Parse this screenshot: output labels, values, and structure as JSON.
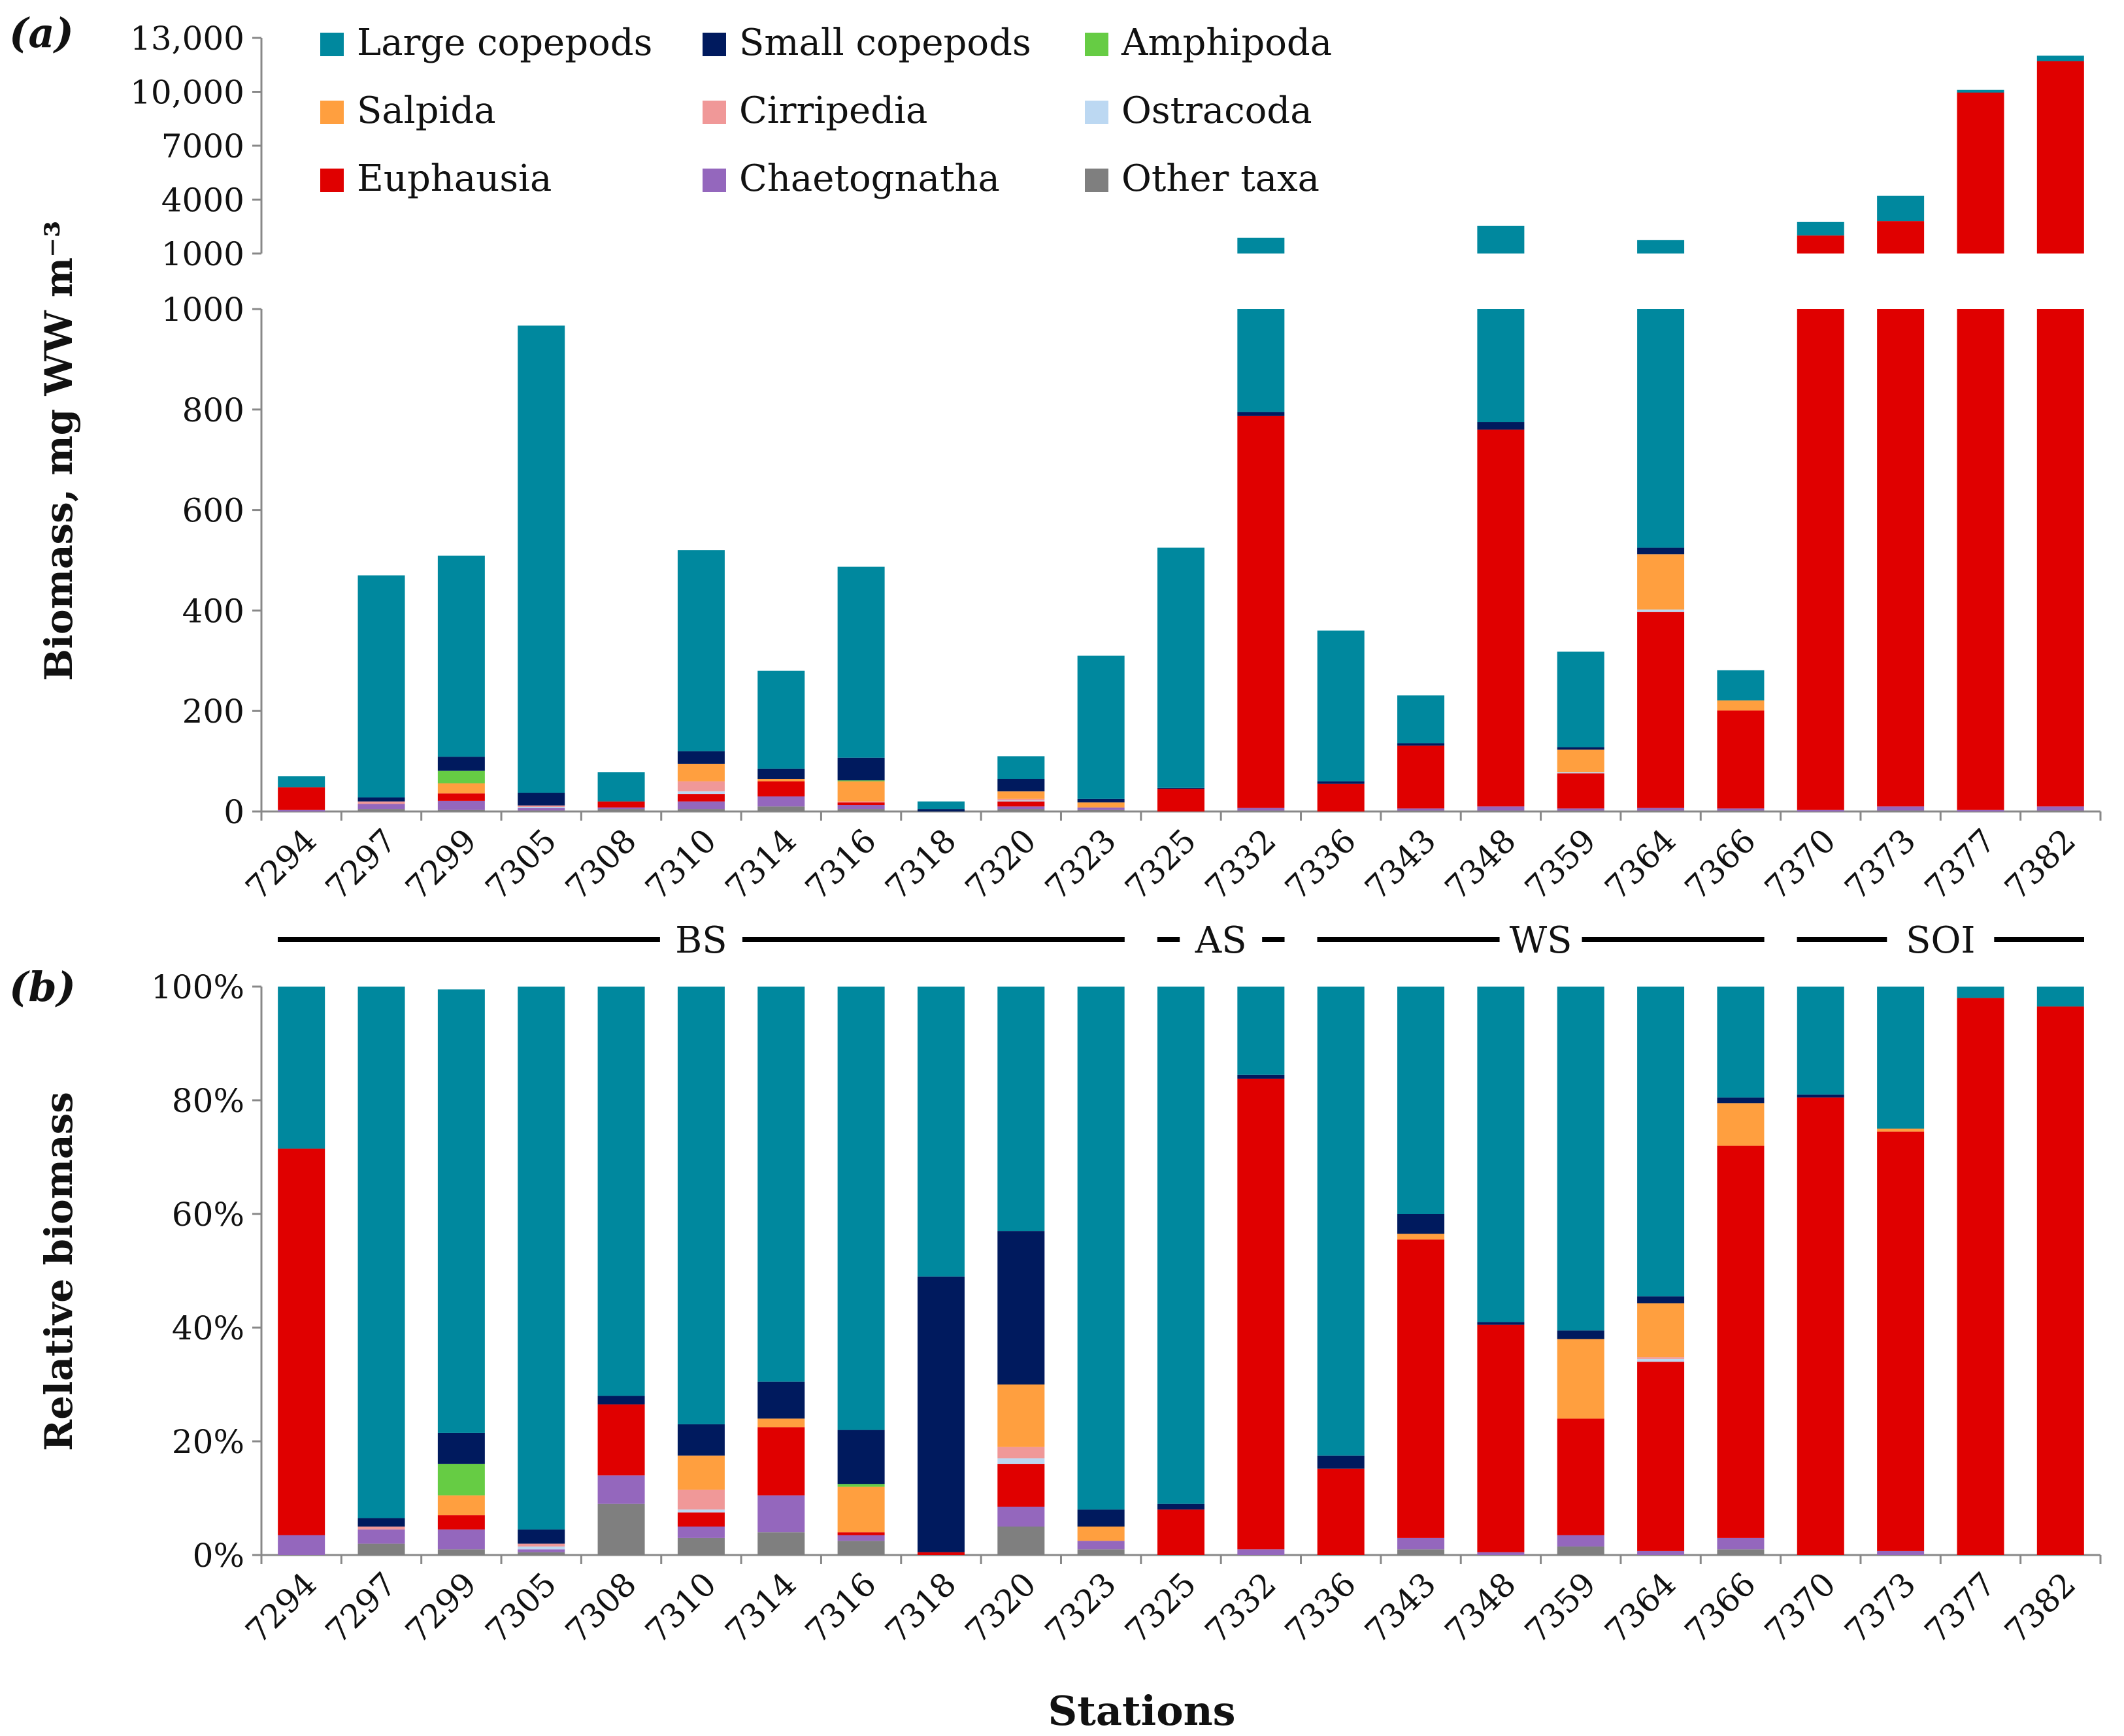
{
  "colors": {
    "large_copepods": "#00889e",
    "small_copepods": "#001a5e",
    "amphipoda": "#66cc44",
    "salpida": "#ff9f3f",
    "cirripedia": "#f09898",
    "ostracoda": "#bcd8f2",
    "euphausia": "#e00000",
    "chaetognatha": "#9467bd",
    "other_taxa": "#7f7f7f",
    "axis": "#888888",
    "text": "#111111"
  },
  "panel_labels": {
    "a": "(a)",
    "b": "(b)"
  },
  "legend": [
    {
      "key": "large_copepods",
      "label": "Large copepods"
    },
    {
      "key": "small_copepods",
      "label": "Small copepods"
    },
    {
      "key": "amphipoda",
      "label": "Amphipoda"
    },
    {
      "key": "salpida",
      "label": "Salpida"
    },
    {
      "key": "cirripedia",
      "label": "Cirripedia"
    },
    {
      "key": "ostracoda",
      "label": "Ostracoda"
    },
    {
      "key": "euphausia",
      "label": "Euphausia"
    },
    {
      "key": "chaetognatha",
      "label": "Chaetognatha"
    },
    {
      "key": "other_taxa",
      "label": "Other taxa"
    }
  ],
  "regions": [
    {
      "label": "BS",
      "from": 0,
      "to": 10
    },
    {
      "label": "AS",
      "from": 11,
      "to": 12
    },
    {
      "label": "WS",
      "from": 13,
      "to": 18
    },
    {
      "label": "SOI",
      "from": 19,
      "to": 22
    }
  ],
  "chart_data": [
    {
      "id": "panel-a",
      "type": "bar",
      "stacked": true,
      "title": "",
      "xlabel": "",
      "ylabel": "Biomass, mg WW m⁻³",
      "broken_axis": true,
      "lower_ylim": [
        0,
        1000
      ],
      "lower_ticks": [
        "0",
        "200",
        "400",
        "600",
        "800",
        "1000"
      ],
      "upper_ylim": [
        1000,
        13000
      ],
      "upper_ticks": [
        "1000",
        "4000",
        "7000",
        "10,000",
        "13,000"
      ],
      "grid": false,
      "categories": [
        "7294",
        "7297",
        "7299",
        "7305",
        "7308",
        "7310",
        "7314",
        "7316",
        "7318",
        "7320",
        "7323",
        "7325",
        "7332",
        "7336",
        "7343",
        "7348",
        "7359",
        "7364",
        "7366",
        "7370",
        "7373",
        "7377",
        "7382"
      ],
      "series": [
        {
          "key": "other_taxa",
          "name": "Other taxa",
          "values": [
            0,
            5,
            3,
            2,
            5,
            5,
            10,
            5,
            0,
            5,
            3,
            0,
            2,
            0,
            2,
            2,
            2,
            2,
            2,
            0,
            2,
            0,
            2
          ]
        },
        {
          "key": "chaetognatha",
          "name": "Chaetognatha",
          "values": [
            3,
            10,
            18,
            5,
            3,
            15,
            20,
            8,
            0,
            5,
            5,
            0,
            5,
            0,
            4,
            8,
            4,
            5,
            4,
            3,
            8,
            3,
            8
          ]
        },
        {
          "key": "euphausia",
          "name": "Euphausia",
          "values": [
            45,
            0,
            15,
            0,
            12,
            15,
            30,
            5,
            0,
            10,
            0,
            45,
            780,
            55,
            125,
            750,
            70,
            390,
            195,
            2000,
            2800,
            10000,
            11700
          ]
        },
        {
          "key": "ostracoda",
          "name": "Ostracoda",
          "values": [
            0,
            0,
            0,
            2,
            0,
            5,
            0,
            0,
            0,
            2,
            0,
            0,
            0,
            0,
            0,
            0,
            2,
            5,
            0,
            0,
            0,
            0,
            0
          ]
        },
        {
          "key": "cirripedia",
          "name": "Cirripedia",
          "values": [
            0,
            5,
            0,
            3,
            0,
            20,
            0,
            2,
            0,
            3,
            0,
            0,
            0,
            0,
            0,
            0,
            0,
            0,
            0,
            0,
            0,
            0,
            0
          ]
        },
        {
          "key": "salpida",
          "name": "Salpida",
          "values": [
            0,
            0,
            20,
            0,
            0,
            35,
            5,
            40,
            0,
            15,
            10,
            0,
            0,
            0,
            0,
            0,
            45,
            110,
            20,
            0,
            0,
            0,
            0
          ]
        },
        {
          "key": "amphipoda",
          "name": "Amphipoda",
          "values": [
            0,
            0,
            25,
            0,
            0,
            0,
            0,
            2,
            0,
            0,
            0,
            0,
            0,
            0,
            0,
            0,
            0,
            0,
            0,
            0,
            0,
            0,
            0
          ]
        },
        {
          "key": "small_copepods",
          "name": "Small copepods",
          "values": [
            0,
            8,
            28,
            25,
            0,
            25,
            20,
            45,
            5,
            25,
            7,
            2,
            8,
            5,
            5,
            15,
            5,
            13,
            0,
            0,
            0,
            0,
            0
          ]
        },
        {
          "key": "large_copepods",
          "name": "Large copepods",
          "values": [
            22,
            442,
            400,
            930,
            58,
            400,
            195,
            380,
            15,
            45,
            285,
            478,
            1085,
            300,
            95,
            1760,
            190,
            1230,
            60,
            750,
            1400,
            100,
            300
          ]
        }
      ]
    },
    {
      "id": "panel-b",
      "type": "bar",
      "stacked": true,
      "title": "",
      "xlabel": "Stations",
      "ylabel": "Relative biomass",
      "ylim": [
        0,
        100
      ],
      "ticks": [
        "0%",
        "20%",
        "40%",
        "60%",
        "80%",
        "100%"
      ],
      "grid": false,
      "categories": [
        "7294",
        "7297",
        "7299",
        "7305",
        "7308",
        "7310",
        "7314",
        "7316",
        "7318",
        "7320",
        "7323",
        "7325",
        "7332",
        "7336",
        "7343",
        "7348",
        "7359",
        "7364",
        "7366",
        "7370",
        "7373",
        "7377",
        "7382"
      ],
      "series": [
        {
          "key": "other_taxa",
          "name": "Other taxa",
          "values": [
            0,
            2,
            1,
            0.5,
            9,
            3,
            4,
            2.5,
            0,
            5,
            1,
            0,
            0,
            0,
            1,
            0,
            1.5,
            0,
            1,
            0,
            0,
            0,
            0
          ]
        },
        {
          "key": "chaetognatha",
          "name": "Chaetognatha",
          "values": [
            3.5,
            2.5,
            3.5,
            0.5,
            5,
            2,
            6.5,
            1,
            0,
            3.5,
            1.5,
            0,
            1,
            0,
            2,
            0.5,
            2,
            0.7,
            2,
            0,
            0.7,
            0,
            0
          ]
        },
        {
          "key": "euphausia",
          "name": "Euphausia",
          "values": [
            68,
            0,
            2.5,
            0,
            12.5,
            2.5,
            12,
            0.5,
            0.5,
            7.5,
            0,
            8,
            82.8,
            15.2,
            52.5,
            40,
            20.5,
            33.3,
            69,
            80.5,
            73.8,
            98,
            96.5
          ]
        },
        {
          "key": "ostracoda",
          "name": "Ostracoda",
          "values": [
            0,
            0,
            0,
            0.5,
            0,
            0.5,
            0,
            0,
            0,
            1,
            0,
            0,
            0,
            0,
            0,
            0,
            0,
            0.5,
            0,
            0,
            0,
            0,
            0
          ]
        },
        {
          "key": "cirripedia",
          "name": "Cirripedia",
          "values": [
            0,
            0.5,
            0,
            0.5,
            0,
            3.5,
            0,
            0,
            0,
            2,
            0,
            0,
            0,
            0,
            0,
            0,
            0,
            0.3,
            0,
            0,
            0,
            0,
            0
          ]
        },
        {
          "key": "salpida",
          "name": "Salpida",
          "values": [
            0,
            0,
            3.5,
            0,
            0,
            6,
            1.5,
            8,
            0,
            11,
            2.5,
            0,
            0,
            0,
            1,
            0,
            14,
            9.5,
            7.5,
            0,
            0.5,
            0,
            0
          ]
        },
        {
          "key": "amphipoda",
          "name": "Amphipoda",
          "values": [
            0,
            0,
            5.5,
            0,
            0,
            0,
            0,
            0.5,
            0,
            0,
            0,
            0,
            0,
            0,
            0,
            0,
            0,
            0,
            0,
            0,
            0,
            0,
            0
          ]
        },
        {
          "key": "small_copepods",
          "name": "Small copepods",
          "values": [
            0,
            1.5,
            5.5,
            2.5,
            1.5,
            5.5,
            6.5,
            9.5,
            48.5,
            27,
            3,
            1,
            0.7,
            2.3,
            3.5,
            0.5,
            1.5,
            1.2,
            1,
            0.5,
            0,
            0,
            0
          ]
        },
        {
          "key": "large_copepods",
          "name": "Large copepods",
          "values": [
            28.5,
            93.5,
            78,
            95.5,
            72,
            77,
            69.5,
            78,
            51,
            43,
            92,
            91,
            15.5,
            82.5,
            40,
            59,
            60.5,
            54.5,
            19.5,
            19,
            25,
            2,
            3.5
          ]
        }
      ]
    }
  ]
}
